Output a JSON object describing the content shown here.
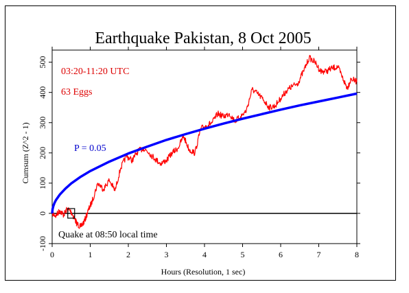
{
  "chart_data": {
    "type": "line",
    "title": "Earthquake Pakistan, 8 Oct 2005",
    "xlabel": "Hours (Resolution, 1 sec)",
    "ylabel": "Cumsum (Z^2 - 1)",
    "xlim": [
      0,
      8
    ],
    "ylim": [
      -100,
      540
    ],
    "x_ticks": [
      0,
      1,
      2,
      3,
      4,
      5,
      6,
      7,
      8
    ],
    "y_ticks": [
      -100,
      0,
      100,
      200,
      300,
      400,
      500
    ],
    "grid": false,
    "annotations": {
      "time_range": "03:20-11:20 UTC",
      "eggs": "63 Eggs",
      "probability": "P = 0.05",
      "event": "Quake at 08:50 local time"
    },
    "event_marker": {
      "x": 0.5,
      "y": 0
    },
    "series": [
      {
        "key": "cumsum",
        "color": "#ff0000",
        "x": [
          0,
          0.1,
          0.2,
          0.3,
          0.4,
          0.5,
          0.6,
          0.65,
          0.75,
          0.85,
          0.95,
          1.05,
          1.2,
          1.35,
          1.5,
          1.65,
          1.8,
          1.95,
          2.1,
          2.25,
          2.4,
          2.55,
          2.7,
          2.85,
          3.0,
          3.15,
          3.3,
          3.45,
          3.6,
          3.75,
          3.9,
          4.05,
          4.2,
          4.35,
          4.5,
          4.65,
          4.8,
          4.95,
          5.1,
          5.25,
          5.4,
          5.55,
          5.7,
          5.85,
          6.0,
          6.15,
          6.3,
          6.45,
          6.6,
          6.75,
          6.9,
          7.05,
          7.2,
          7.35,
          7.5,
          7.65,
          7.75,
          7.85,
          8.0
        ],
        "y": [
          0,
          -8,
          10,
          -5,
          15,
          5,
          -20,
          -35,
          -45,
          -25,
          10,
          40,
          100,
          80,
          110,
          75,
          150,
          190,
          175,
          205,
          215,
          200,
          180,
          165,
          175,
          200,
          215,
          255,
          210,
          200,
          280,
          290,
          300,
          330,
          320,
          330,
          305,
          320,
          340,
          410,
          395,
          375,
          350,
          355,
          380,
          405,
          420,
          430,
          470,
          515,
          500,
          470,
          470,
          480,
          485,
          440,
          415,
          445,
          435
        ]
      },
      {
        "key": "p05",
        "color": "#0000ff",
        "x": [
          0,
          0.01,
          0.03,
          0.06,
          0.1,
          0.2,
          0.35,
          0.5,
          0.75,
          1.0,
          1.5,
          2.0,
          2.5,
          3.0,
          3.5,
          4.0,
          4.5,
          5.0,
          5.5,
          6.0,
          6.5,
          7.0,
          7.5,
          8.0
        ],
        "y": [
          0,
          14,
          24,
          34,
          44,
          62,
          82,
          99,
          121,
          140,
          171,
          198,
          221,
          243,
          262,
          280,
          297,
          313,
          328,
          343,
          357,
          370,
          383,
          396
        ]
      }
    ]
  }
}
